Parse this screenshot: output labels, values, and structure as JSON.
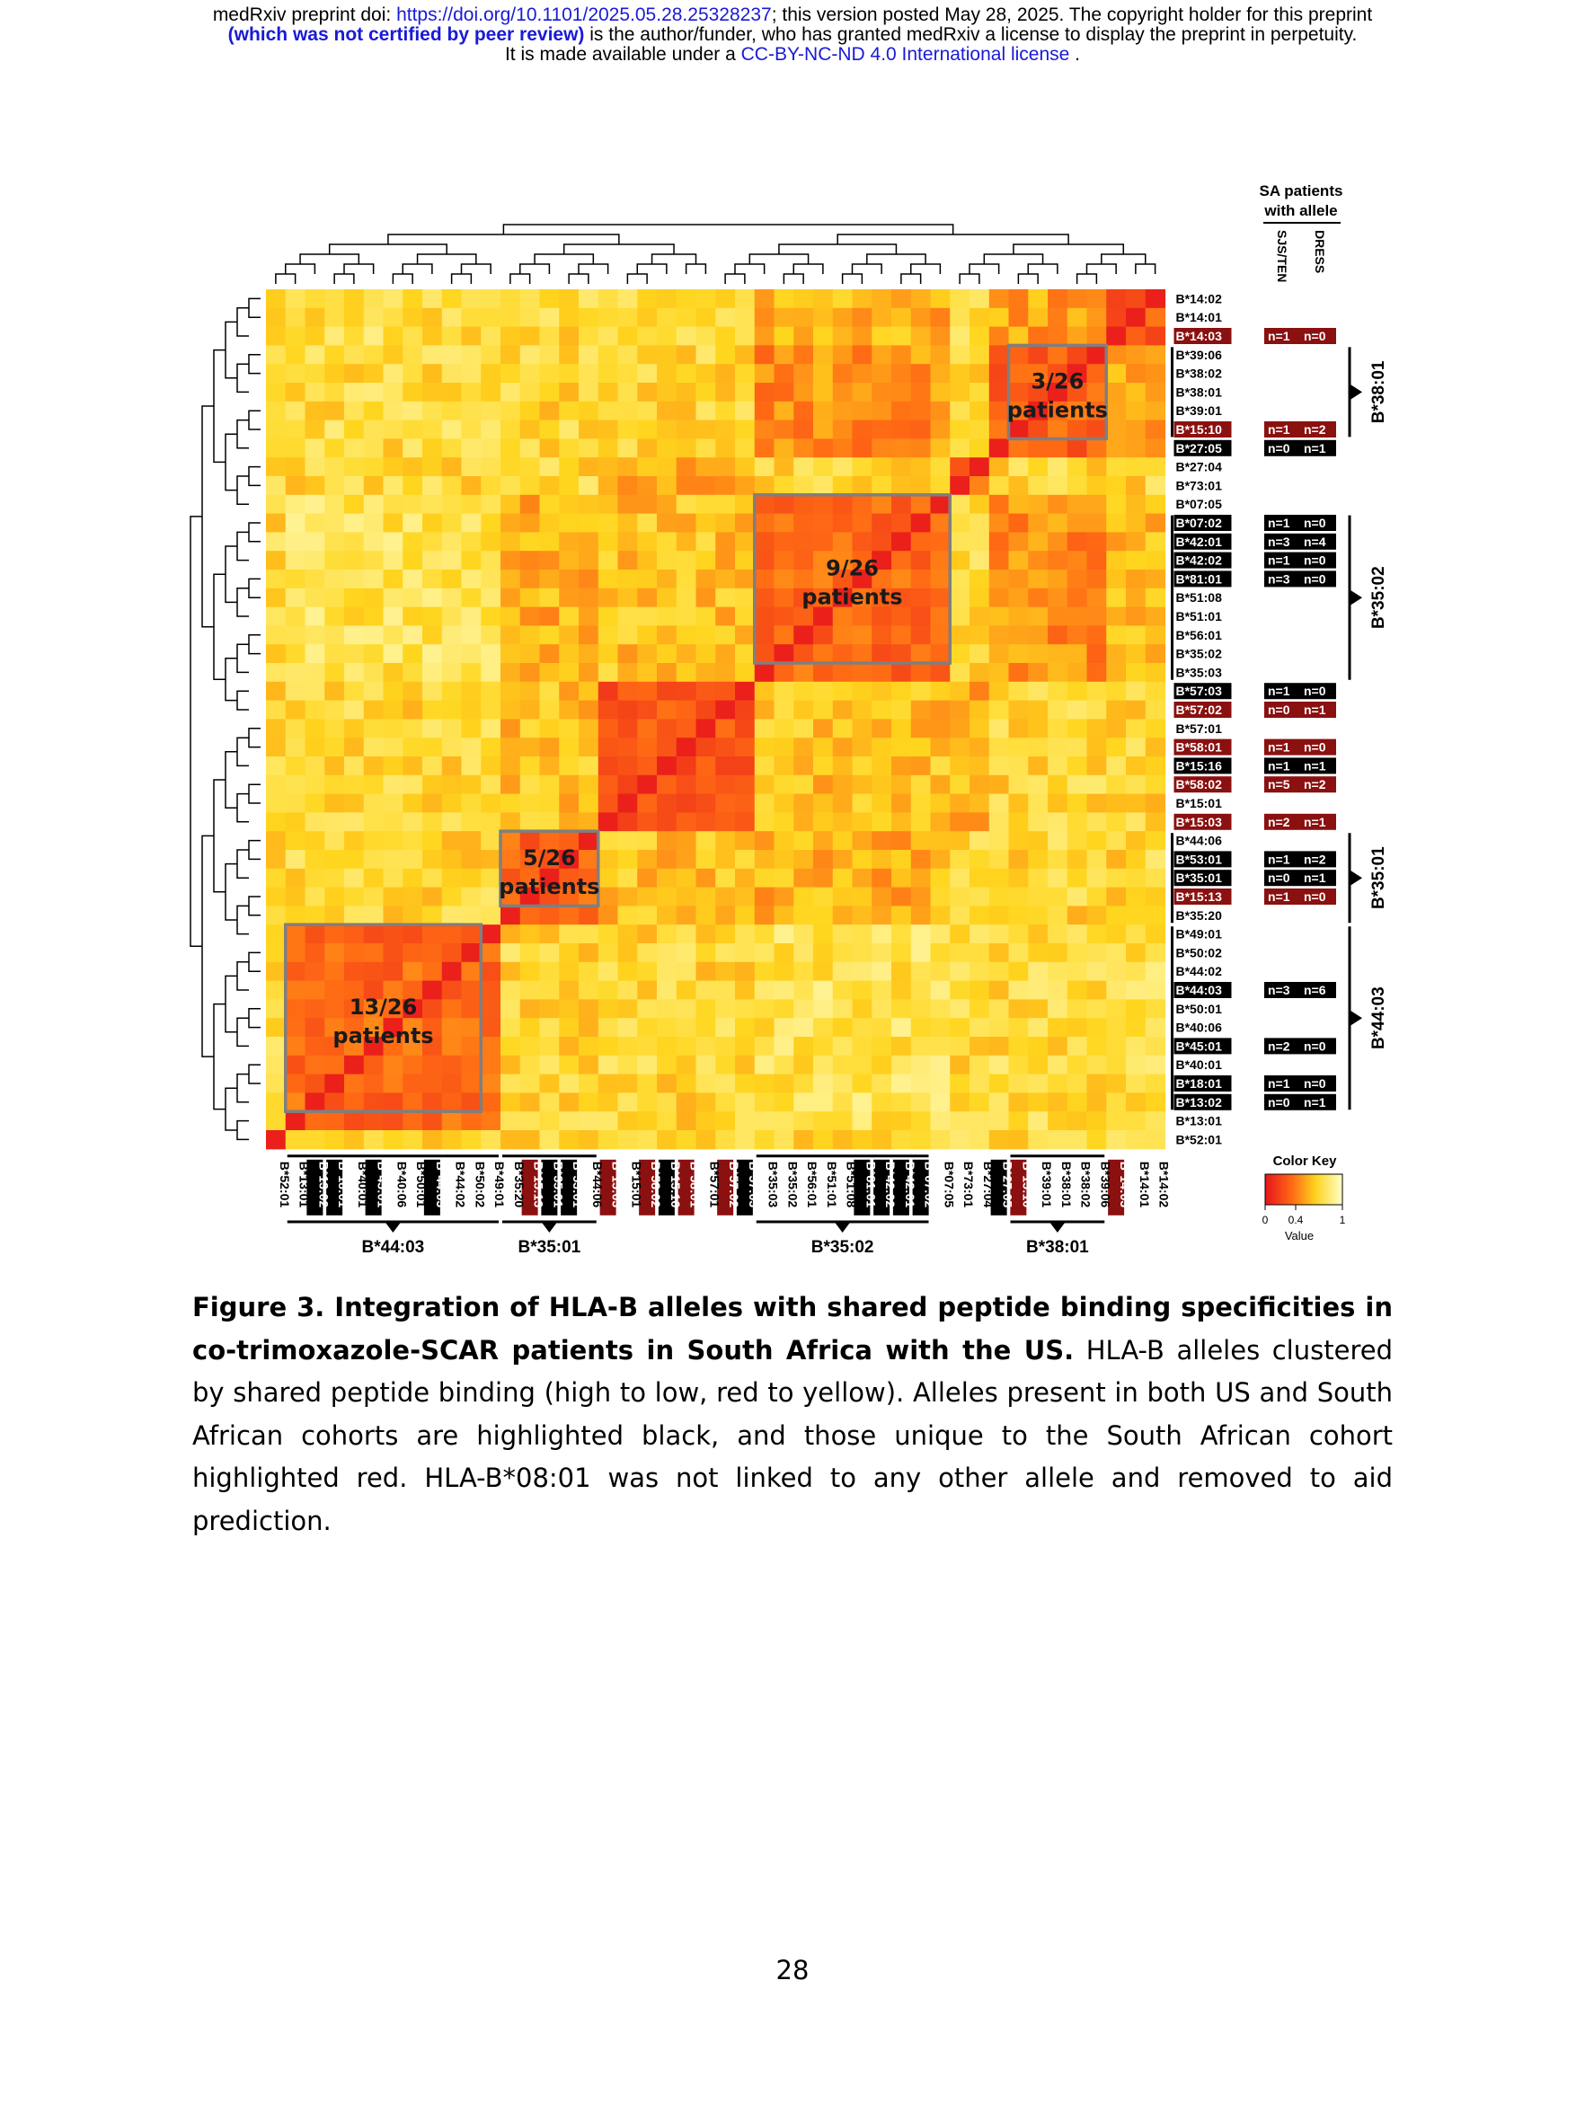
{
  "header": {
    "line1_prefix": "medRxiv preprint doi: ",
    "doi_link": "https://doi.org/10.1101/2025.05.28.25328237",
    "line1_suffix": "; this version posted May 28, 2025. The copyright holder for this preprint",
    "line2_bold": "(which was not certified by peer review)",
    "line2_rest": " is the author/funder, who has granted medRxiv a license to display the preprint in perpetuity.",
    "line3_prefix": "It is made available under a ",
    "license_link": "CC-BY-NC-ND 4.0 International license",
    "line3_suffix": " ."
  },
  "figure": {
    "right_header_line1": "SA patients",
    "right_header_line2": "with allele",
    "col_label_sjs": "SJS/TEN",
    "col_label_dress": "DRESS",
    "color_key_title": "Color Key",
    "color_key_ticks": [
      "0",
      "0.4",
      "1"
    ],
    "color_key_axis": "Value",
    "colors": {
      "high": "#e8141c",
      "mid": "#ff8a1a",
      "low": "#ffffc8",
      "box": "#7f7f7f",
      "highlight_red": "#8b1010",
      "highlight_black": "#000000"
    },
    "row_labels": [
      {
        "t": "B*14:02",
        "h": ""
      },
      {
        "t": "B*14:01",
        "h": ""
      },
      {
        "t": "B*14:03",
        "h": "r"
      },
      {
        "t": "B*39:06",
        "h": ""
      },
      {
        "t": "B*38:02",
        "h": ""
      },
      {
        "t": "B*38:01",
        "h": ""
      },
      {
        "t": "B*39:01",
        "h": ""
      },
      {
        "t": "B*15:10",
        "h": "r"
      },
      {
        "t": "B*27:05",
        "h": "k"
      },
      {
        "t": "B*27:04",
        "h": ""
      },
      {
        "t": "B*73:01",
        "h": ""
      },
      {
        "t": "B*07:05",
        "h": ""
      },
      {
        "t": "B*07:02",
        "h": "k"
      },
      {
        "t": "B*42:01",
        "h": "k"
      },
      {
        "t": "B*42:02",
        "h": "k"
      },
      {
        "t": "B*81:01",
        "h": "k"
      },
      {
        "t": "B*51:08",
        "h": ""
      },
      {
        "t": "B*51:01",
        "h": ""
      },
      {
        "t": "B*56:01",
        "h": ""
      },
      {
        "t": "B*35:02",
        "h": ""
      },
      {
        "t": "B*35:03",
        "h": ""
      },
      {
        "t": "B*57:03",
        "h": "k"
      },
      {
        "t": "B*57:02",
        "h": "r"
      },
      {
        "t": "B*57:01",
        "h": ""
      },
      {
        "t": "B*58:01",
        "h": "r"
      },
      {
        "t": "B*15:16",
        "h": "k"
      },
      {
        "t": "B*58:02",
        "h": "r"
      },
      {
        "t": "B*15:01",
        "h": ""
      },
      {
        "t": "B*15:03",
        "h": "r"
      },
      {
        "t": "B*44:06",
        "h": ""
      },
      {
        "t": "B*53:01",
        "h": "k"
      },
      {
        "t": "B*35:01",
        "h": "k"
      },
      {
        "t": "B*15:13",
        "h": "r"
      },
      {
        "t": "B*35:20",
        "h": ""
      },
      {
        "t": "B*49:01",
        "h": ""
      },
      {
        "t": "B*50:02",
        "h": ""
      },
      {
        "t": "B*44:02",
        "h": ""
      },
      {
        "t": "B*44:03",
        "h": "k"
      },
      {
        "t": "B*50:01",
        "h": ""
      },
      {
        "t": "B*40:06",
        "h": ""
      },
      {
        "t": "B*45:01",
        "h": "k"
      },
      {
        "t": "B*40:01",
        "h": ""
      },
      {
        "t": "B*18:01",
        "h": "k"
      },
      {
        "t": "B*13:02",
        "h": "k"
      },
      {
        "t": "B*13:01",
        "h": ""
      },
      {
        "t": "B*52:01",
        "h": ""
      }
    ],
    "counts": [
      {
        "row": 2,
        "sjs": "n=1",
        "dress": "n=0",
        "h": "r"
      },
      {
        "row": 7,
        "sjs": "n=1",
        "dress": "n=2",
        "h": "r"
      },
      {
        "row": 8,
        "sjs": "n=0",
        "dress": "n=1",
        "h": "k"
      },
      {
        "row": 12,
        "sjs": "n=1",
        "dress": "n=0",
        "h": "k"
      },
      {
        "row": 13,
        "sjs": "n=3",
        "dress": "n=4",
        "h": "k"
      },
      {
        "row": 14,
        "sjs": "n=1",
        "dress": "n=0",
        "h": "k"
      },
      {
        "row": 15,
        "sjs": "n=3",
        "dress": "n=0",
        "h": "k"
      },
      {
        "row": 21,
        "sjs": "n=1",
        "dress": "n=0",
        "h": "k"
      },
      {
        "row": 22,
        "sjs": "n=0",
        "dress": "n=1",
        "h": "r"
      },
      {
        "row": 24,
        "sjs": "n=1",
        "dress": "n=0",
        "h": "r"
      },
      {
        "row": 25,
        "sjs": "n=1",
        "dress": "n=1",
        "h": "k"
      },
      {
        "row": 26,
        "sjs": "n=5",
        "dress": "n=2",
        "h": "r"
      },
      {
        "row": 28,
        "sjs": "n=2",
        "dress": "n=1",
        "h": "r"
      },
      {
        "row": 30,
        "sjs": "n=1",
        "dress": "n=2",
        "h": "k"
      },
      {
        "row": 31,
        "sjs": "n=0",
        "dress": "n=1",
        "h": "k"
      },
      {
        "row": 32,
        "sjs": "n=1",
        "dress": "n=0",
        "h": "r"
      },
      {
        "row": 37,
        "sjs": "n=3",
        "dress": "n=6",
        "h": "k"
      },
      {
        "row": 40,
        "sjs": "n=2",
        "dress": "n=0",
        "h": "k"
      },
      {
        "row": 42,
        "sjs": "n=1",
        "dress": "n=0",
        "h": "k"
      },
      {
        "row": 43,
        "sjs": "n=0",
        "dress": "n=1",
        "h": "k"
      }
    ],
    "row_groups": [
      {
        "label": "B*38:01",
        "start": 3,
        "end": 7
      },
      {
        "label": "B*35:02",
        "start": 12,
        "end": 20
      },
      {
        "label": "B*35:01",
        "start": 29,
        "end": 33
      },
      {
        "label": "B*44:03",
        "start": 34,
        "end": 43
      }
    ],
    "col_groups": [
      {
        "label": "B*44:03",
        "start": 1,
        "end": 11
      },
      {
        "label": "B*35:01",
        "start": 12,
        "end": 16
      },
      {
        "label": "B*35:02",
        "start": 25,
        "end": 33
      },
      {
        "label": "B*38:01",
        "start": 38,
        "end": 42
      }
    ],
    "boxes": [
      {
        "line1": "13/26",
        "line2": "patients",
        "r0": 34,
        "r1": 44,
        "c0": 1,
        "c1": 11
      },
      {
        "line1": "5/26",
        "line2": "patients",
        "r0": 29,
        "r1": 33,
        "c0": 12,
        "c1": 17
      },
      {
        "line1": "9/26",
        "line2": "patients",
        "r0": 11,
        "r1": 20,
        "c0": 25,
        "c1": 35
      },
      {
        "line1": "3/26",
        "line2": "patients",
        "r0": 3,
        "r1": 8,
        "c0": 38,
        "c1": 43
      }
    ]
  },
  "caption": {
    "title": "Figure 3. Integration of HLA-B alleles with shared peptide binding specificities in co-trimoxazole-SCAR patients in South Africa with the US.",
    "body": " HLA-B alleles clustered by shared peptide binding (high to low, red to yellow). Alleles present in both US and South African cohorts are highlighted black, and those unique to the South African cohort highlighted red. HLA-B*08:01 was not linked to any other allele and removed to aid prediction."
  },
  "page_number": "28"
}
